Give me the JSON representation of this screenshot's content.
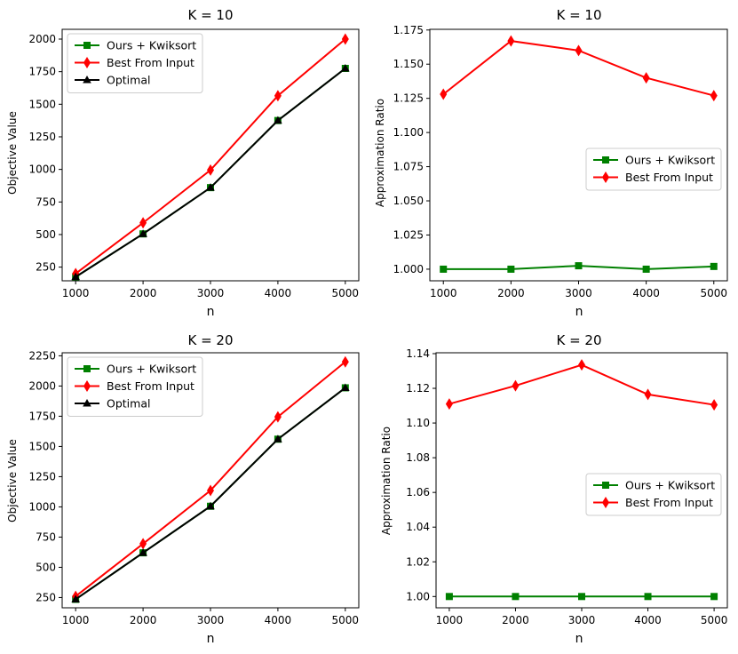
{
  "chart_data": [
    {
      "type": "line",
      "title": "K = 10",
      "xlabel": "n",
      "ylabel": "Objective Value",
      "x": [
        1000,
        2000,
        3000,
        4000,
        5000
      ],
      "xticks": [
        "1000",
        "2000",
        "3000",
        "4000",
        "5000"
      ],
      "ylim": [
        145,
        2075
      ],
      "yticks": [
        250,
        500,
        750,
        1000,
        1250,
        1500,
        1750,
        2000
      ],
      "ytick_labels": [
        "250",
        "500",
        "750",
        "1000",
        "1250",
        "1500",
        "1750",
        "2000"
      ],
      "legend_position": "top-left",
      "series": [
        {
          "name": "Ours + Kwiksort",
          "color": "#008000",
          "marker": "square",
          "values": [
            175,
            505,
            860,
            1375,
            1775
          ]
        },
        {
          "name": "Best From Input",
          "color": "#ff0000",
          "marker": "diamond",
          "values": [
            200,
            590,
            995,
            1565,
            2000
          ]
        },
        {
          "name": "Optimal",
          "color": "#000000",
          "marker": "triangle",
          "values": [
            175,
            505,
            860,
            1375,
            1775
          ]
        }
      ]
    },
    {
      "type": "line",
      "title": "K = 10",
      "xlabel": "n",
      "ylabel": "Approximation Ratio",
      "x": [
        1000,
        2000,
        3000,
        4000,
        5000
      ],
      "xticks": [
        "1000",
        "2000",
        "3000",
        "4000",
        "5000"
      ],
      "ylim": [
        0.9915,
        1.1755
      ],
      "yticks": [
        1.0,
        1.025,
        1.05,
        1.075,
        1.1,
        1.125,
        1.15,
        1.175
      ],
      "ytick_labels": [
        "1.000",
        "1.025",
        "1.050",
        "1.075",
        "1.100",
        "1.125",
        "1.150",
        "1.175"
      ],
      "legend_position": "center-right",
      "series": [
        {
          "name": "Ours + Kwiksort",
          "color": "#008000",
          "marker": "square",
          "values": [
            1.0,
            1.0,
            1.0025,
            1.0,
            1.002
          ]
        },
        {
          "name": "Best From Input",
          "color": "#ff0000",
          "marker": "diamond",
          "values": [
            1.128,
            1.167,
            1.16,
            1.14,
            1.127
          ]
        }
      ]
    },
    {
      "type": "line",
      "title": "K = 20",
      "xlabel": "n",
      "ylabel": "Objective Value",
      "x": [
        1000,
        2000,
        3000,
        4000,
        5000
      ],
      "xticks": [
        "1000",
        "2000",
        "3000",
        "4000",
        "5000"
      ],
      "ylim": [
        165,
        2275
      ],
      "yticks": [
        250,
        500,
        750,
        1000,
        1250,
        1500,
        1750,
        2000,
        2250
      ],
      "ytick_labels": [
        "250",
        "500",
        "750",
        "1000",
        "1250",
        "1500",
        "1750",
        "2000",
        "2250"
      ],
      "legend_position": "top-left",
      "series": [
        {
          "name": "Ours + Kwiksort",
          "color": "#008000",
          "marker": "square",
          "values": [
            235,
            620,
            1005,
            1560,
            1985
          ]
        },
        {
          "name": "Best From Input",
          "color": "#ff0000",
          "marker": "diamond",
          "values": [
            260,
            695,
            1135,
            1745,
            2200
          ]
        },
        {
          "name": "Optimal",
          "color": "#000000",
          "marker": "triangle",
          "values": [
            235,
            620,
            1005,
            1560,
            1985
          ]
        }
      ]
    },
    {
      "type": "line",
      "title": "K = 20",
      "xlabel": "n",
      "ylabel": "Approximation Ratio",
      "x": [
        1000,
        2000,
        3000,
        4000,
        5000
      ],
      "xticks": [
        "1000",
        "2000",
        "3000",
        "4000",
        "5000"
      ],
      "ylim": [
        0.9935,
        1.1405
      ],
      "yticks": [
        1.0,
        1.02,
        1.04,
        1.06,
        1.08,
        1.1,
        1.12,
        1.14
      ],
      "ytick_labels": [
        "1.00",
        "1.02",
        "1.04",
        "1.06",
        "1.08",
        "1.10",
        "1.12",
        "1.14"
      ],
      "legend_position": "center-right",
      "series": [
        {
          "name": "Ours + Kwiksort",
          "color": "#008000",
          "marker": "square",
          "values": [
            1.0,
            1.0,
            1.0,
            1.0,
            1.0
          ]
        },
        {
          "name": "Best From Input",
          "color": "#ff0000",
          "marker": "diamond",
          "values": [
            1.111,
            1.1215,
            1.1335,
            1.1165,
            1.1105
          ]
        }
      ]
    }
  ]
}
